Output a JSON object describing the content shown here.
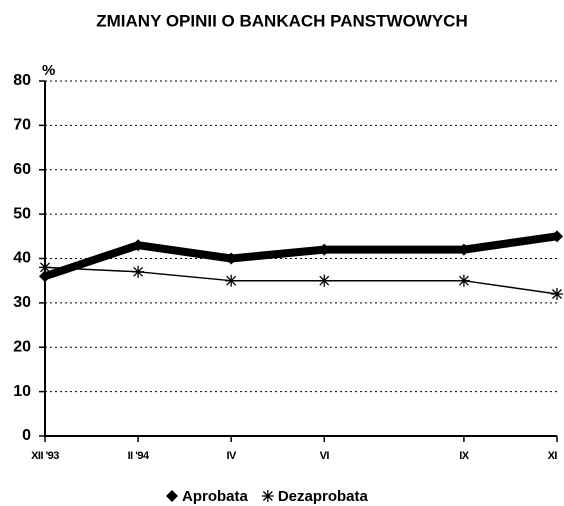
{
  "chart_data": {
    "type": "line",
    "title": "ZMIANY OPINII O BANKACH PANSTWOWYCH",
    "y_label": "%",
    "categories": [
      "XII '93",
      "II '94",
      "IV",
      "VI",
      "IX",
      "XI"
    ],
    "series": [
      {
        "name": "Aprobata",
        "color": "#000000",
        "marker": "diamond",
        "values": [
          36,
          43,
          40,
          42,
          42,
          45
        ]
      },
      {
        "name": "Dezaprobata",
        "color": "#000000",
        "marker": "asterisk",
        "values": [
          38,
          37,
          35,
          35,
          35,
          32
        ]
      }
    ],
    "ylim": [
      0,
      80
    ],
    "yticks": [
      0,
      10,
      20,
      30,
      40,
      50,
      60,
      70,
      80
    ],
    "grid": true,
    "legend": "bottom"
  }
}
